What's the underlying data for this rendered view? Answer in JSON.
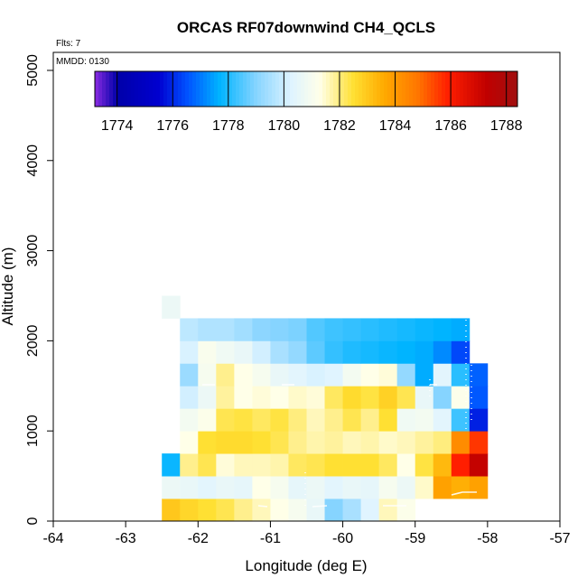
{
  "chart_data": {
    "type": "heatmap",
    "title": "ORCAS RF07downwind CH4_QCLS",
    "annotations": [
      "Flts: 7",
      "MMDD: 0130"
    ],
    "xlabel": "Longitude (deg E)",
    "ylabel": "Altitude (m)",
    "xlim": [
      -64,
      -57
    ],
    "ylim": [
      0,
      5200
    ],
    "x_ticks": [
      -64,
      -63,
      -62,
      -61,
      -60,
      -59,
      -58,
      -57
    ],
    "x_tick_labels": [
      "-64",
      "-63",
      "-62",
      "-61",
      "-60",
      "-59",
      "-58",
      "-57"
    ],
    "y_ticks": [
      0,
      1000,
      2000,
      3000,
      4000,
      5000
    ],
    "y_tick_labels": [
      "0",
      "1000",
      "2000",
      "3000",
      "4000",
      "5000"
    ],
    "colorbar": {
      "min": 1773.2,
      "max": 1788.4,
      "ticks": [
        1774,
        1776,
        1778,
        1780,
        1782,
        1784,
        1786,
        1788
      ],
      "tick_labels": [
        "1774",
        "1776",
        "1778",
        "1780",
        "1782",
        "1784",
        "1786",
        "1788"
      ],
      "stops": [
        {
          "v": 1773.2,
          "c": "#8a2be2"
        },
        {
          "v": 1774.0,
          "c": "#0000a8"
        },
        {
          "v": 1775.5,
          "c": "#0000d0"
        },
        {
          "v": 1776.5,
          "c": "#0050ff"
        },
        {
          "v": 1777.7,
          "c": "#00b4ff"
        },
        {
          "v": 1779.0,
          "c": "#86d4ff"
        },
        {
          "v": 1780.3,
          "c": "#e0f4ff"
        },
        {
          "v": 1781.3,
          "c": "#ffffe8"
        },
        {
          "v": 1782.5,
          "c": "#ffe033"
        },
        {
          "v": 1783.6,
          "c": "#ffaa00"
        },
        {
          "v": 1784.8,
          "c": "#ff7700"
        },
        {
          "v": 1785.9,
          "c": "#ff1e00"
        },
        {
          "v": 1787.3,
          "c": "#c00000"
        },
        {
          "v": 1788.4,
          "c": "#a01010"
        }
      ]
    },
    "grid": {
      "lon_edges": [
        -62.5,
        -62.25,
        -62.0,
        -61.75,
        -61.5,
        -61.25,
        -61.0,
        -60.75,
        -60.5,
        -60.25,
        -60.0,
        -59.75,
        -59.5,
        -59.25,
        -59.0,
        -58.75,
        -58.5,
        -58.25,
        -58.0
      ],
      "alt_edges": [
        0,
        250,
        500,
        750,
        1000,
        1250,
        1500,
        1750,
        2000,
        2250,
        2500
      ],
      "rows": [
        [
          1783.0,
          1782.7,
          1782.5,
          1782.3,
          1781.9,
          1781.6,
          1781.3,
          1781.0,
          1780.6,
          1779.0,
          1779.5,
          1780.3,
          1781.6,
          1781.2,
          null,
          null,
          null,
          null
        ],
        [
          1780.7,
          1780.6,
          1780.4,
          1780.6,
          1780.5,
          1781.3,
          1781.0,
          1780.5,
          1780.7,
          1780.4,
          1780.6,
          1780.5,
          1781.0,
          1780.7,
          1781.5,
          1783.8,
          1783.5,
          1783.8
        ],
        [
          1777.8,
          1781.9,
          1782.3,
          1781.4,
          1781.6,
          1781.6,
          1781.7,
          1782.2,
          1782.3,
          1782.5,
          1782.5,
          1782.5,
          1782.2,
          1781.3,
          1782.4,
          1783.3,
          1785.9,
          1787.2
        ],
        [
          null,
          1781.3,
          1782.5,
          1782.6,
          1782.6,
          1782.5,
          1782.3,
          1781.9,
          1781.7,
          1781.8,
          1781.6,
          1781.7,
          1781.5,
          1781.6,
          1781.8,
          1782.0,
          1784.3,
          1785.6
        ],
        [
          null,
          1780.9,
          1781.2,
          1782.3,
          1782.4,
          1782.2,
          1782.4,
          1782.0,
          1781.6,
          1781.9,
          1782.3,
          1781.9,
          1782.5,
          1780.8,
          1780.9,
          1780.4,
          1778.3,
          1775.9
        ],
        [
          null,
          1780.1,
          1780.7,
          1781.8,
          1781.3,
          1781.4,
          1781.3,
          1781.5,
          1781.4,
          1782.2,
          1782.6,
          1782.4,
          1782.8,
          1782.3,
          1780.6,
          1779.0,
          1781.2,
          1776.6
        ],
        [
          null,
          1779.3,
          1781.0,
          1781.9,
          1781.3,
          1781.0,
          1780.6,
          1780.4,
          1780.2,
          1780.3,
          1780.9,
          1781.3,
          1781.4,
          1779.2,
          1777.6,
          1780.4,
          1778.1,
          1776.7
        ],
        [
          null,
          1780.2,
          1781.1,
          1780.8,
          1780.6,
          1780.1,
          1779.5,
          1779.2,
          1778.6,
          1778.2,
          1778.0,
          1777.9,
          1777.8,
          1777.7,
          1777.6,
          1777.2,
          1776.4,
          null
        ],
        [
          null,
          1779.8,
          1779.6,
          1779.6,
          1779.4,
          1779.1,
          1779.0,
          1778.9,
          1778.5,
          1778.3,
          1778.2,
          1778.1,
          1778.0,
          1777.9,
          1777.8,
          1777.7,
          1777.6,
          null
        ],
        [
          1780.7,
          null,
          null,
          null,
          null,
          null,
          null,
          null,
          null,
          null,
          null,
          null,
          null,
          null,
          null,
          null,
          null,
          null
        ]
      ]
    }
  }
}
